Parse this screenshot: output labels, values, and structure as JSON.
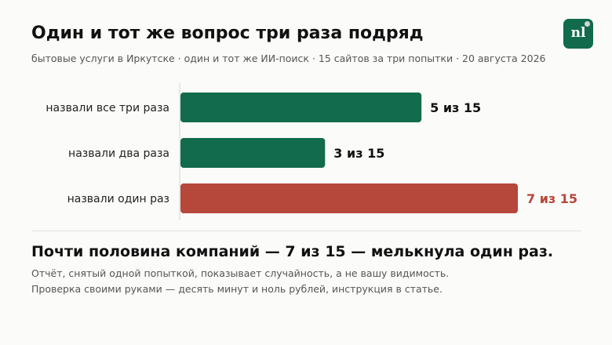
{
  "title": "Один и тот же вопрос три раза подряд",
  "subtitle": "бытовые услуги в Иркутске · один и тот же ИИ-поиск · 15 сайтов за три попытки · 20 августа 2026",
  "logo": {
    "text": "nl",
    "color": "#116b4c"
  },
  "chart_data": {
    "type": "bar",
    "orientation": "horizontal",
    "categories": [
      "назвали все три раза",
      "назвали два раза",
      "назвали один раз"
    ],
    "values": [
      5,
      3,
      7
    ],
    "total": 15,
    "value_labels": [
      "5 из 15",
      "3 из 15",
      "7 из 15"
    ],
    "colors": [
      "#116b4c",
      "#116b4c",
      "#b5473b"
    ],
    "label_colors": [
      "#111111",
      "#111111",
      "#b5473b"
    ],
    "xlim": [
      0,
      15
    ],
    "grid": false,
    "legend": "none"
  },
  "headline": "Почти половина компаний — 7 из 15 — мелькнула один раз.",
  "notes": [
    "Отчёт, снятый одной попыткой, показывает случайность, а не вашу видимость.",
    "Проверка своими руками — десять минут и ноль рублей, инструкция в статье."
  ]
}
